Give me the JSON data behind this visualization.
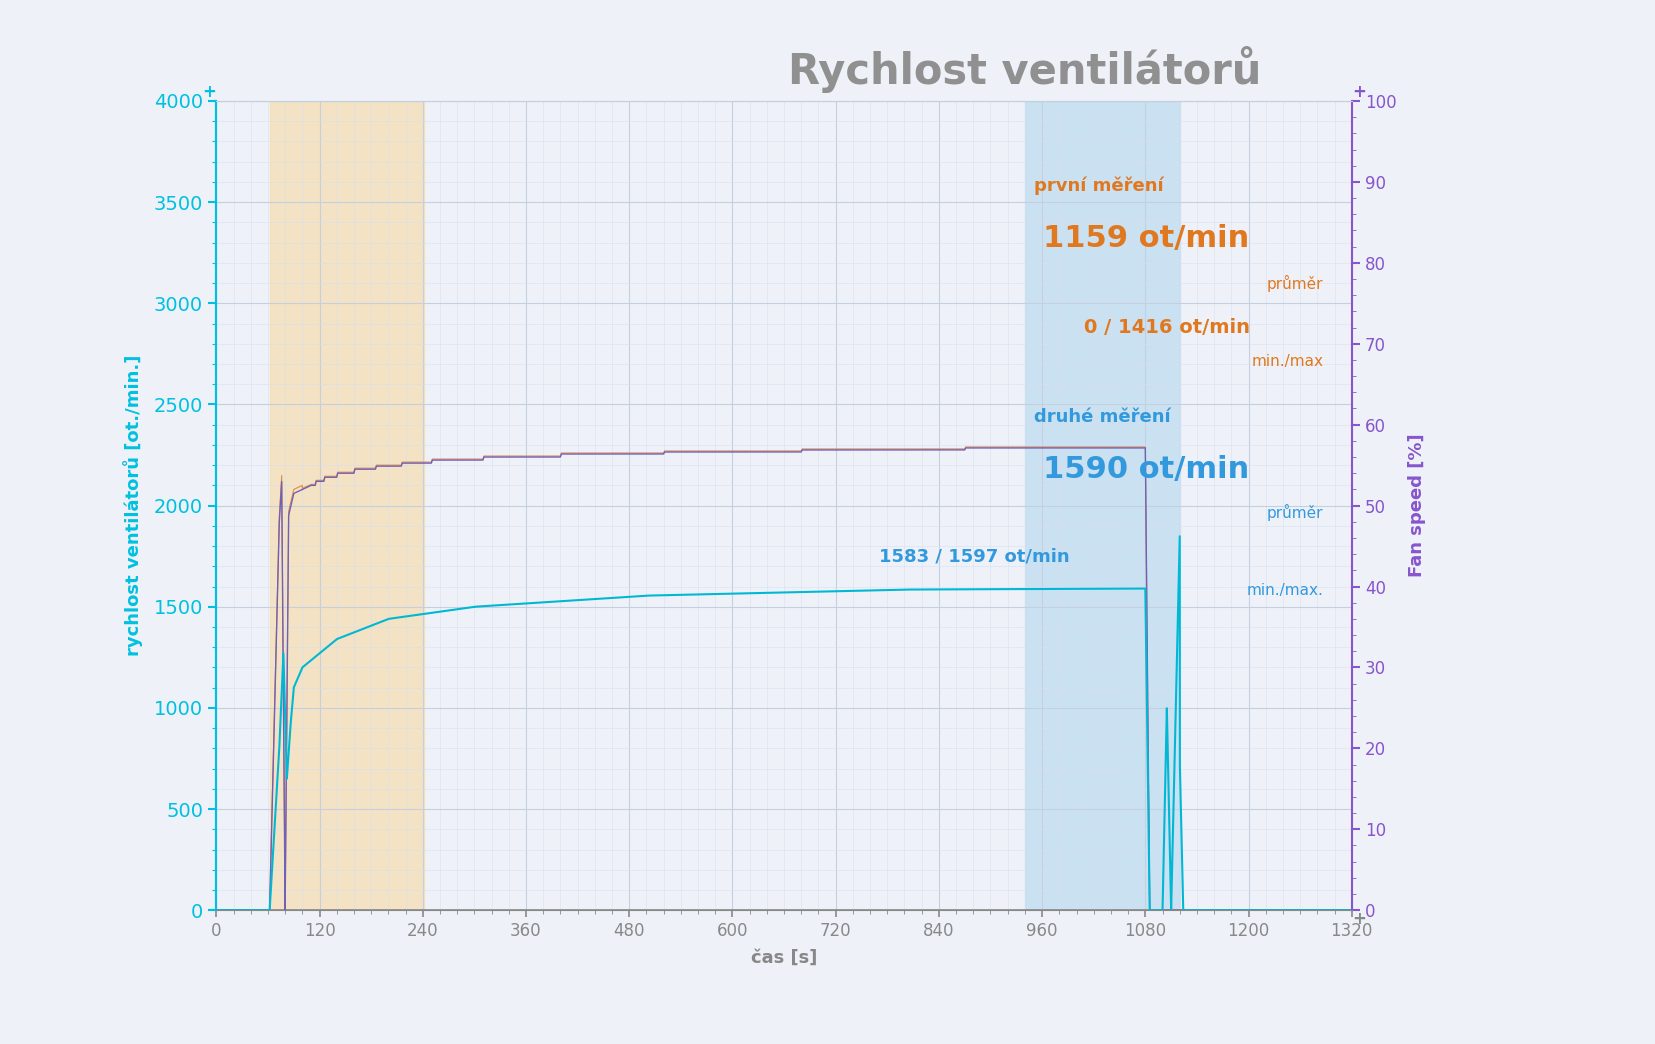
{
  "title": "Rychlost ventilátorů",
  "ylabel_left": "rychlost ventilátorů [ot./min.]",
  "ylabel_right": "Fan speed [%]",
  "xlabel": "čas [s]",
  "xlim": [
    0,
    1320
  ],
  "ylim_left": [
    0,
    4000
  ],
  "ylim_right": [
    0,
    100
  ],
  "bg_color": "#eef2f8",
  "grid_color": "#c5cfe0",
  "grid_minor_color": "#d8dff0",
  "orange_region": [
    62,
    242
  ],
  "blue_region": [
    940,
    1120
  ],
  "orange_bg": "#f5deb3",
  "blue_bg": "#b8d8f0",
  "line_cyan_color": "#00b8d4",
  "line_purple_color": "#7060b8",
  "line_orange_color": "#e08030",
  "ann_orange": "#e07820",
  "ann_blue": "#3399dd",
  "title_color": "#909090",
  "left_tick_color": "#00c0e0",
  "right_tick_color": "#8855cc",
  "bottom_tick_color": "#888888",
  "xticks": [
    0,
    120,
    240,
    360,
    480,
    600,
    720,
    840,
    960,
    1080,
    1200,
    1320
  ],
  "yticks_left": [
    0,
    500,
    1000,
    1500,
    2000,
    2500,
    3000,
    3500,
    4000
  ],
  "yticks_right": [
    0,
    10,
    20,
    30,
    40,
    50,
    60,
    70,
    80,
    90,
    100
  ]
}
